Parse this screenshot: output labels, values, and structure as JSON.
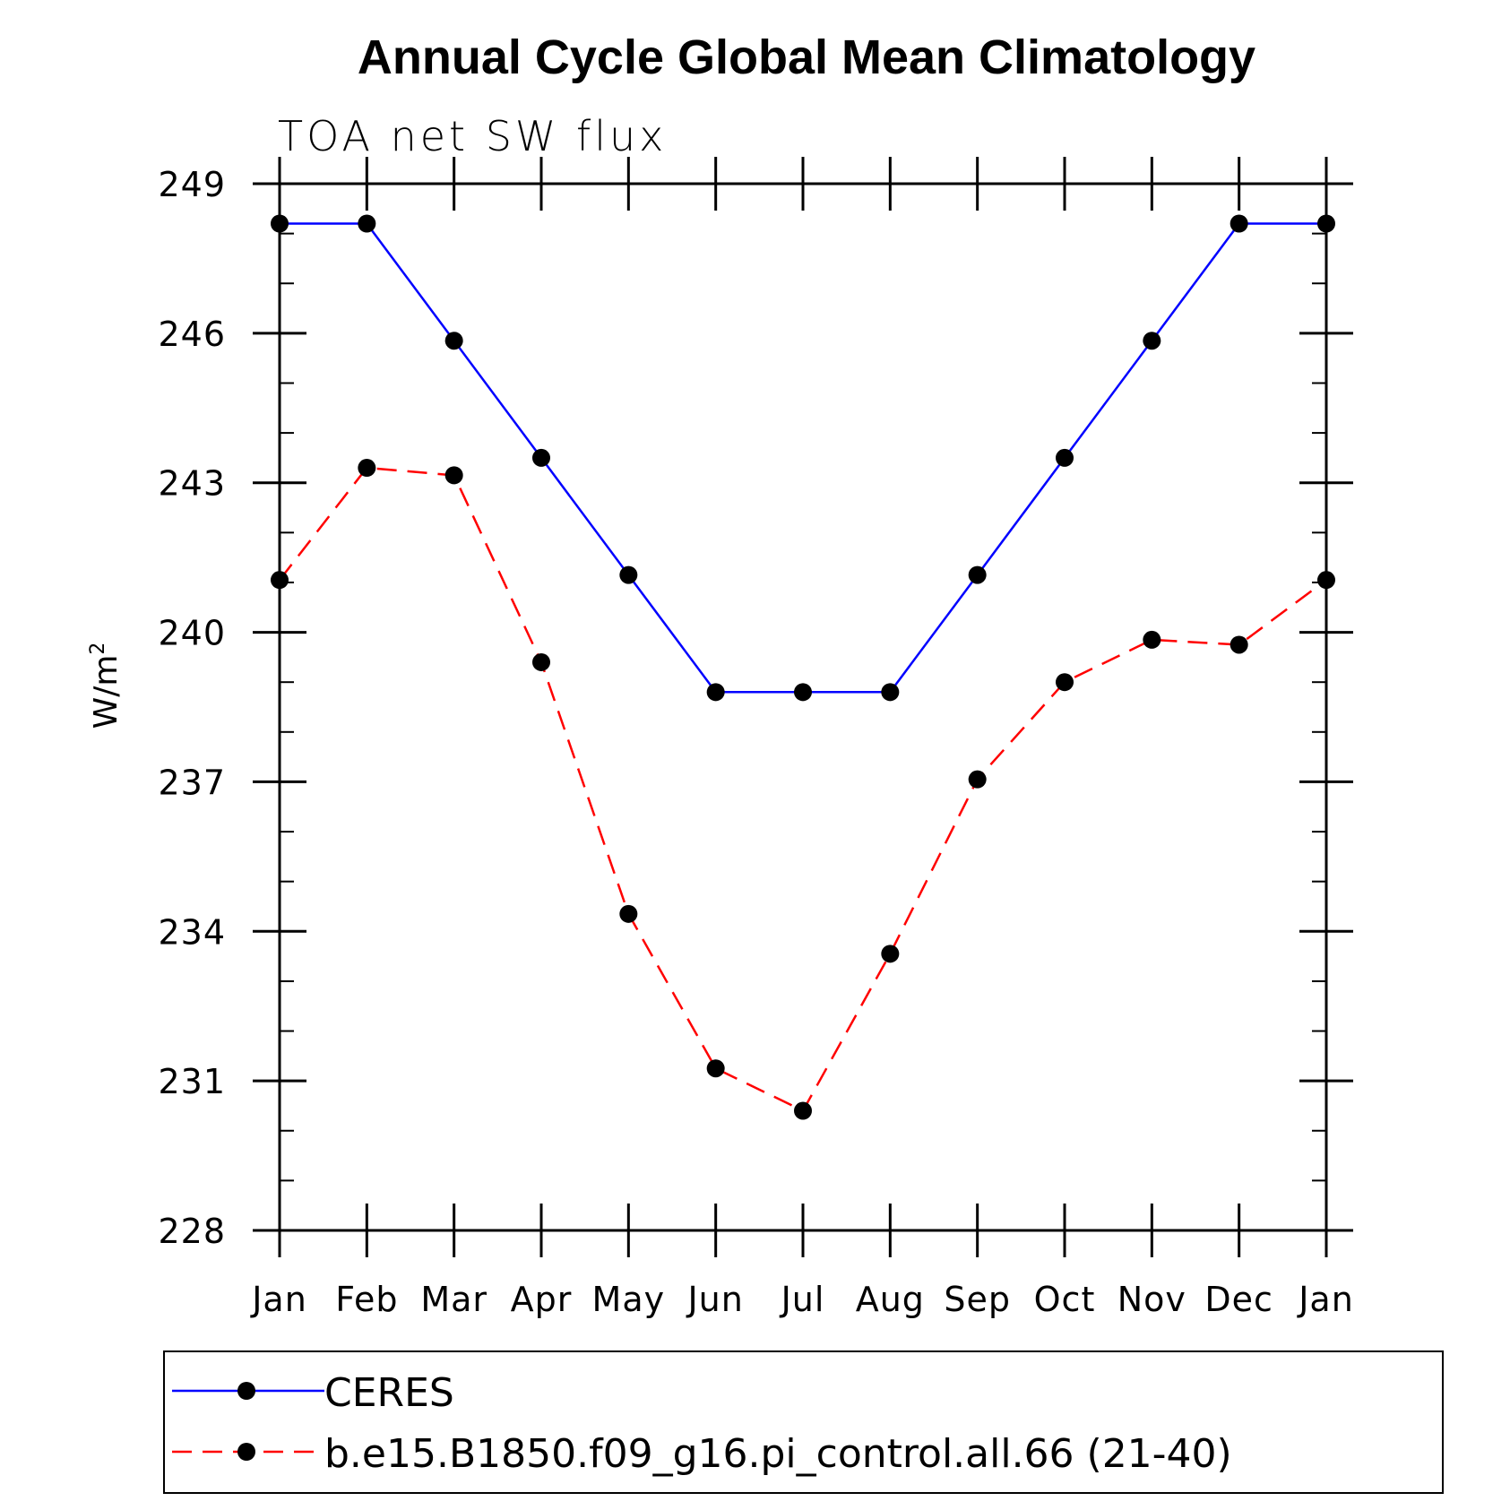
{
  "chart_data": {
    "type": "line",
    "title": "Annual Cycle Global Mean Climatology",
    "subtitle": "TOA net SW flux",
    "ylabel": "W/m",
    "ylabel_superscript": "2",
    "xlabel": "",
    "categories": [
      "Jan",
      "Feb",
      "Mar",
      "Apr",
      "May",
      "Jun",
      "Jul",
      "Aug",
      "Sep",
      "Oct",
      "Nov",
      "Dec",
      "Jan"
    ],
    "ylim": [
      228,
      249
    ],
    "yticks": [
      228,
      231,
      234,
      237,
      240,
      243,
      246,
      249
    ],
    "ytick_labels": [
      "228",
      "231",
      "234",
      "237",
      "240",
      "243",
      "246",
      "249"
    ],
    "series": [
      {
        "name": "CERES",
        "color": "#0000ff",
        "style": "solid",
        "marker": "filled-circle",
        "values": [
          248.2,
          248.2,
          245.85,
          243.5,
          241.15,
          238.8,
          238.8,
          238.8,
          241.15,
          243.5,
          245.85,
          248.2,
          248.2
        ]
      },
      {
        "name": "b.e15.B1850.f09_g16.pi_control.all.66 (21-40)",
        "color": "#ff0000",
        "style": "dashed",
        "marker": "filled-circle",
        "values": [
          241.05,
          243.3,
          243.15,
          239.4,
          234.35,
          231.25,
          230.4,
          233.55,
          237.05,
          239.0,
          239.85,
          239.75,
          241.05
        ]
      }
    ],
    "legend": {
      "placement": "bottom"
    }
  }
}
